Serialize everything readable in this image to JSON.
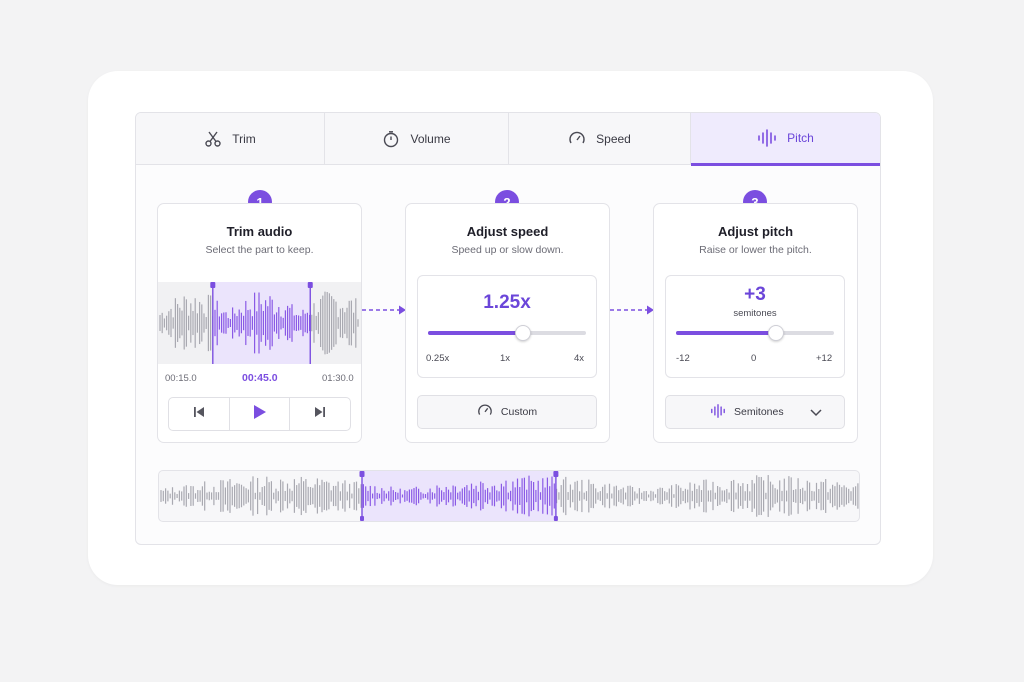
{
  "tabs": [
    {
      "label": "Trim",
      "icon": "scissors-icon"
    },
    {
      "label": "Volume",
      "icon": "timer-icon"
    },
    {
      "label": "Speed",
      "icon": "gauge-icon"
    },
    {
      "label": "Pitch",
      "icon": "waveform-icon",
      "active": true
    }
  ],
  "steps": [
    {
      "number": "1",
      "title": "Trim audio",
      "subtitle": "Select the part to keep."
    },
    {
      "number": "2",
      "title": "Adjust speed",
      "subtitle": "Speed up or slow down."
    },
    {
      "number": "3",
      "title": "Adjust pitch",
      "subtitle": "Raise or lower the pitch."
    }
  ],
  "trim": {
    "start_time": "00:15.0",
    "current_time": "00:45.0",
    "end_time": "01:30.0",
    "selection_start_fraction": 0.27,
    "selection_end_fraction": 0.75
  },
  "speed": {
    "value_label": "1.25x",
    "slider_fraction": 0.6,
    "ticks": [
      "0.25x",
      "1x",
      "4x"
    ],
    "option_label": "Custom"
  },
  "pitch": {
    "value_label": "+3",
    "unit_label": "semitones",
    "slider_fraction": 0.63,
    "ticks": [
      "-12",
      "0",
      "+12"
    ],
    "mode_label": "Semitones"
  },
  "timeline": {
    "selection_start_fraction": 0.29,
    "selection_end_fraction": 0.567
  },
  "colors": {
    "accent": "#7b4ee0",
    "selection": "#ebe4fc",
    "wave_gray": "#a9a9b1",
    "wave_purple": "#8a5ae6"
  }
}
